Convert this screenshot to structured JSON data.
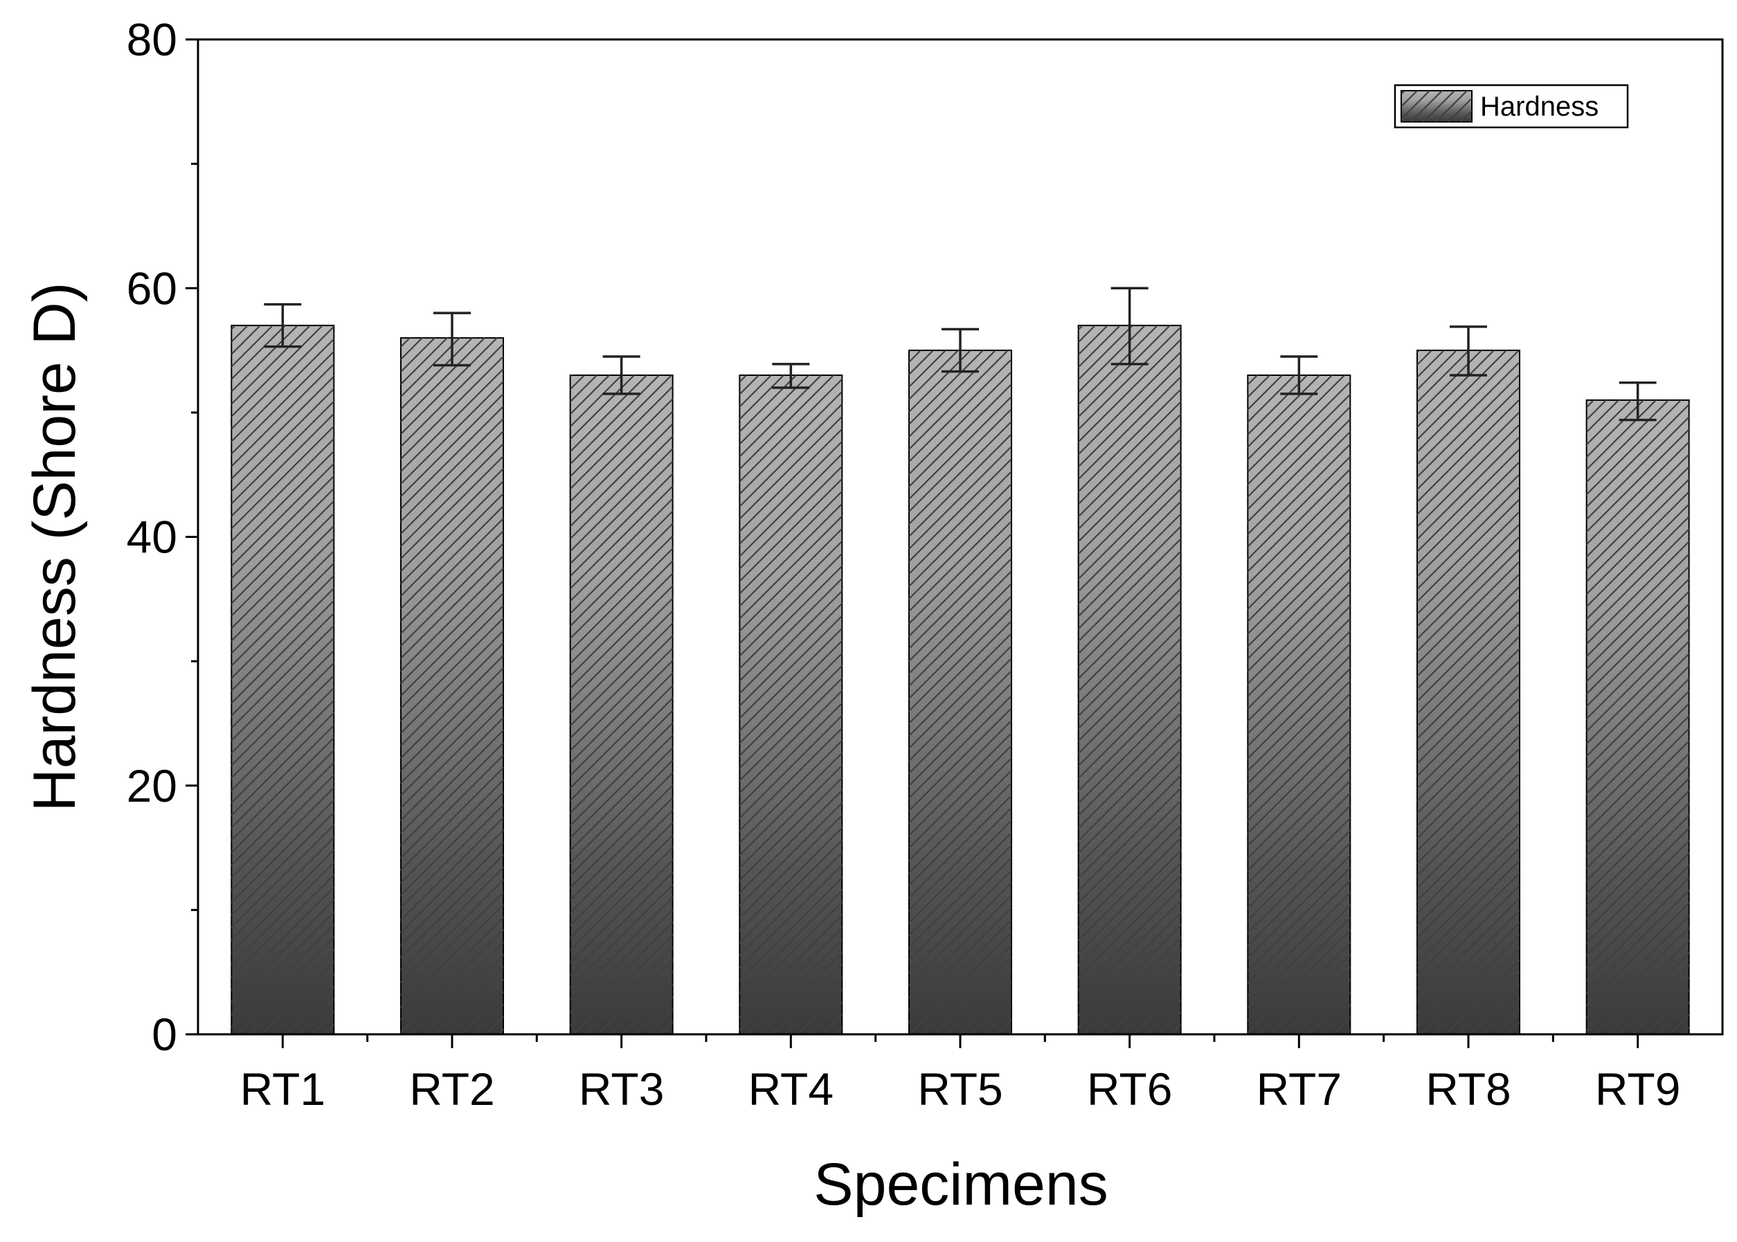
{
  "chart_data": {
    "type": "bar",
    "title": "",
    "xlabel": "Specimens",
    "ylabel": "Hardness (Shore D)",
    "ylim": [
      0,
      80
    ],
    "yticks": [
      "0",
      "20",
      "40",
      "60",
      "80"
    ],
    "categories": [
      "RT1",
      "RT2",
      "RT3",
      "RT4",
      "RT5",
      "RT6",
      "RT7",
      "RT8",
      "RT9"
    ],
    "series": [
      {
        "name": "Hardness",
        "values": [
          57,
          56,
          53,
          53,
          55,
          57,
          53,
          55,
          51
        ],
        "error_low": [
          55.3,
          53.8,
          51.5,
          52.0,
          53.3,
          53.9,
          51.5,
          53.0,
          49.4
        ],
        "error_high": [
          58.7,
          58.0,
          54.5,
          53.9,
          56.7,
          60.0,
          54.5,
          56.9,
          52.4
        ]
      }
    ],
    "legend": {
      "position": "top-right"
    },
    "grid": false,
    "colors": {
      "bar_top": "#b4b4b4",
      "bar_bottom": "#3a3a3a",
      "hatch": "#555555",
      "axis": "#000000"
    }
  }
}
